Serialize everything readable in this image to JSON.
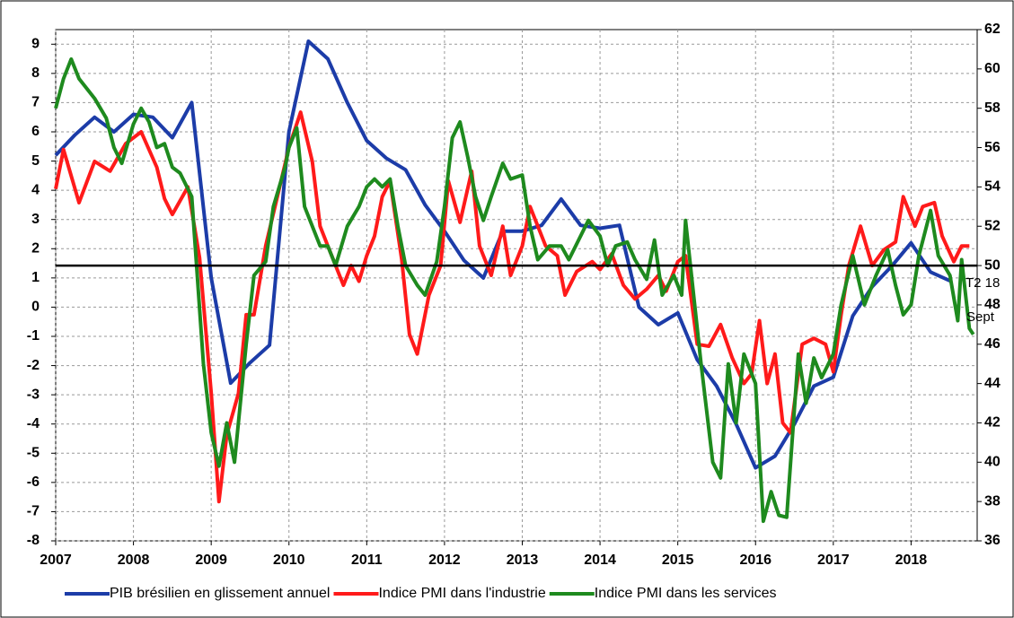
{
  "chart_data": {
    "type": "line",
    "xlim": [
      2007,
      2018.85
    ],
    "xticks": [
      2007,
      2008,
      2009,
      2010,
      2011,
      2012,
      2013,
      2014,
      2015,
      2016,
      2017,
      2018
    ],
    "ylim": [
      -8,
      9.5
    ],
    "yticks": [
      -8,
      -7,
      -6,
      -5,
      -4,
      -3,
      -2,
      -1,
      0,
      1,
      2,
      3,
      4,
      5,
      6,
      7,
      8,
      9
    ],
    "y2lim": [
      36,
      62
    ],
    "y2ticks": [
      36,
      38,
      40,
      42,
      44,
      46,
      48,
      50,
      52,
      54,
      56,
      58,
      60,
      62
    ],
    "grid": true,
    "reference_line": {
      "axis": "y2",
      "value": 50,
      "color": "#000000"
    },
    "annotations": [
      "T2 18",
      "Sept"
    ],
    "series": [
      {
        "name": "PIB brésilien en glissement annuel",
        "color": "#1c3ca8",
        "x": [
          2007.0,
          2007.25,
          2007.5,
          2007.75,
          2008.0,
          2008.25,
          2008.5,
          2008.75,
          2009.0,
          2009.25,
          2009.5,
          2009.75,
          2010.0,
          2010.25,
          2010.5,
          2010.75,
          2011.0,
          2011.25,
          2011.5,
          2011.75,
          2012.0,
          2012.25,
          2012.5,
          2012.75,
          2013.0,
          2013.25,
          2013.5,
          2013.75,
          2014.0,
          2014.25,
          2014.5,
          2014.75,
          2015.0,
          2015.25,
          2015.5,
          2015.75,
          2016.0,
          2016.25,
          2016.5,
          2016.75,
          2017.0,
          2017.25,
          2017.5,
          2017.75,
          2018.0,
          2018.25,
          2018.5
        ],
        "values": [
          5.2,
          5.9,
          6.5,
          6.0,
          6.6,
          6.5,
          5.8,
          7.0,
          1.0,
          -2.6,
          -1.9,
          -1.3,
          6.0,
          9.1,
          8.5,
          7.0,
          5.7,
          5.1,
          4.7,
          3.5,
          2.6,
          1.6,
          1.0,
          2.6,
          2.6,
          2.8,
          3.7,
          2.8,
          2.7,
          2.8,
          0.0,
          -0.6,
          -0.2,
          -1.8,
          -2.7,
          -4.0,
          -5.5,
          -5.1,
          -4.0,
          -2.7,
          -2.4,
          -0.3,
          0.7,
          1.4,
          2.2,
          1.2,
          0.9
        ]
      },
      {
        "name": "Indice PMI dans l'industrie",
        "color": "#ff1a1a",
        "axis": "y2",
        "x": [
          2007.0,
          2007.1,
          2007.3,
          2007.5,
          2007.7,
          2007.9,
          2008.1,
          2008.3,
          2008.4,
          2008.5,
          2008.7,
          2008.85,
          2009.0,
          2009.1,
          2009.2,
          2009.35,
          2009.45,
          2009.55,
          2009.7,
          2009.85,
          2010.0,
          2010.15,
          2010.3,
          2010.4,
          2010.5,
          2010.6,
          2010.7,
          2010.8,
          2010.9,
          2011.0,
          2011.1,
          2011.2,
          2011.3,
          2011.45,
          2011.55,
          2011.65,
          2011.8,
          2011.95,
          2012.05,
          2012.2,
          2012.35,
          2012.45,
          2012.6,
          2012.75,
          2012.85,
          2013.0,
          2013.1,
          2013.3,
          2013.45,
          2013.55,
          2013.7,
          2013.9,
          2014.0,
          2014.15,
          2014.3,
          2014.45,
          2014.6,
          2014.75,
          2014.85,
          2015.0,
          2015.1,
          2015.25,
          2015.4,
          2015.55,
          2015.7,
          2015.85,
          2015.95,
          2016.05,
          2016.15,
          2016.25,
          2016.35,
          2016.45,
          2016.6,
          2016.75,
          2016.9,
          2017.0,
          2017.1,
          2017.2,
          2017.35,
          2017.5,
          2017.65,
          2017.8,
          2017.9,
          2018.05,
          2018.15,
          2018.3,
          2018.4,
          2018.55,
          2018.65,
          2018.75
        ],
        "values": [
          53.9,
          55.9,
          53.2,
          55.3,
          54.8,
          56.2,
          56.8,
          55.0,
          53.4,
          52.6,
          54.0,
          50.4,
          43.5,
          38.0,
          41.4,
          43.5,
          47.5,
          47.5,
          51.0,
          53.5,
          56.0,
          57.8,
          55.3,
          52.0,
          51.0,
          50.0,
          49.0,
          50.0,
          49.2,
          50.5,
          51.5,
          53.5,
          54.3,
          50.3,
          46.5,
          45.5,
          48.5,
          50.0,
          54.3,
          52.2,
          54.8,
          51.0,
          49.5,
          52.0,
          49.5,
          51.0,
          53.0,
          51.0,
          50.5,
          48.5,
          49.7,
          50.2,
          49.8,
          50.6,
          49.0,
          48.3,
          48.8,
          49.5,
          48.7,
          50.2,
          50.5,
          46.0,
          45.9,
          47.0,
          45.3,
          44.0,
          44.5,
          47.2,
          44.0,
          45.5,
          42.0,
          41.5,
          46.0,
          46.3,
          46.0,
          44.6,
          47.5,
          50.0,
          52.0,
          50.0,
          50.8,
          51.2,
          53.5,
          52.0,
          53.0,
          53.2,
          51.5,
          50.2,
          51.0,
          51.0
        ]
      },
      {
        "name": "Indice PMI dans les services",
        "color": "#1e8a1e",
        "axis": "y2",
        "x": [
          2007.0,
          2007.1,
          2007.2,
          2007.3,
          2007.5,
          2007.65,
          2007.75,
          2007.85,
          2008.0,
          2008.1,
          2008.2,
          2008.3,
          2008.4,
          2008.5,
          2008.6,
          2008.75,
          2008.9,
          2009.0,
          2009.1,
          2009.2,
          2009.3,
          2009.45,
          2009.55,
          2009.7,
          2009.8,
          2009.95,
          2010.0,
          2010.1,
          2010.2,
          2010.4,
          2010.5,
          2010.6,
          2010.75,
          2010.9,
          2011.0,
          2011.1,
          2011.2,
          2011.3,
          2011.4,
          2011.5,
          2011.65,
          2011.75,
          2011.9,
          2012.0,
          2012.1,
          2012.2,
          2012.3,
          2012.4,
          2012.5,
          2012.6,
          2012.75,
          2012.85,
          2013.0,
          2013.1,
          2013.2,
          2013.35,
          2013.5,
          2013.6,
          2013.75,
          2013.85,
          2014.0,
          2014.1,
          2014.2,
          2014.35,
          2014.45,
          2014.6,
          2014.7,
          2014.8,
          2014.95,
          2015.05,
          2015.1,
          2015.3,
          2015.45,
          2015.55,
          2015.65,
          2015.75,
          2015.85,
          2016.0,
          2016.1,
          2016.2,
          2016.3,
          2016.4,
          2016.55,
          2016.65,
          2016.75,
          2016.85,
          2017.0,
          2017.1,
          2017.25,
          2017.4,
          2017.55,
          2017.7,
          2017.8,
          2017.9,
          2018.0,
          2018.1,
          2018.25,
          2018.35,
          2018.5,
          2018.6,
          2018.65,
          2018.75,
          2018.8
        ],
        "values": [
          58.0,
          59.5,
          60.5,
          59.5,
          58.5,
          57.5,
          56.0,
          55.2,
          57.2,
          58.0,
          57.3,
          56.0,
          56.2,
          55.0,
          54.7,
          53.5,
          45.0,
          41.5,
          39.8,
          42.0,
          40.0,
          46.0,
          49.5,
          50.2,
          53.0,
          55.0,
          56.0,
          57.0,
          53.0,
          51.0,
          51.0,
          50.0,
          52.0,
          53.0,
          54.0,
          54.4,
          54.0,
          54.4,
          52.0,
          50.0,
          49.0,
          48.5,
          50.2,
          53.0,
          56.5,
          57.3,
          55.5,
          53.5,
          52.3,
          53.5,
          55.2,
          54.4,
          54.6,
          52.0,
          50.3,
          51.0,
          51.0,
          50.3,
          51.5,
          52.3,
          51.5,
          50.0,
          51.0,
          51.2,
          50.3,
          49.3,
          51.3,
          48.5,
          49.5,
          48.5,
          52.3,
          45.0,
          40.0,
          39.2,
          45.0,
          42.0,
          45.5,
          44.0,
          37.0,
          38.5,
          37.3,
          37.2,
          45.5,
          43.0,
          45.3,
          44.3,
          45.5,
          48.0,
          50.5,
          48.0,
          49.5,
          50.8,
          49.0,
          47.5,
          48.0,
          50.5,
          52.8,
          50.5,
          49.5,
          47.2,
          50.3,
          46.8,
          46.5
        ]
      }
    ]
  }
}
